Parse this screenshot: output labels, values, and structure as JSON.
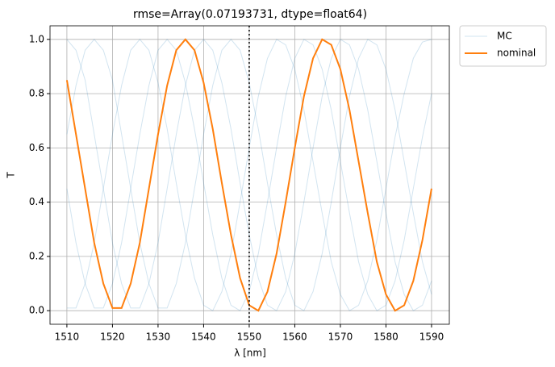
{
  "chart_data": {
    "type": "line",
    "title": "rmse=Array(0.07193731, dtype=float64)",
    "xlabel": "λ [nm]",
    "ylabel": "T",
    "x": [
      1510,
      1512,
      1514,
      1516,
      1518,
      1520,
      1522,
      1524,
      1526,
      1528,
      1530,
      1532,
      1534,
      1536,
      1538,
      1540,
      1542,
      1544,
      1546,
      1548,
      1550,
      1552,
      1554,
      1556,
      1558,
      1560,
      1562,
      1564,
      1566,
      1568,
      1570,
      1572,
      1574,
      1576,
      1578,
      1580,
      1582,
      1584,
      1586,
      1588,
      1590
    ],
    "series": [
      {
        "name": "MC",
        "color": "#1f77b4",
        "runs": [
          [
            0.45,
            0.25,
            0.1,
            0.01,
            0.01,
            0.1,
            0.25,
            0.45,
            0.65,
            0.83,
            0.96,
            1.0,
            0.96,
            0.84,
            0.67,
            0.47,
            0.28,
            0.12,
            0.02,
            0.0,
            0.07,
            0.21,
            0.4,
            0.6,
            0.79,
            0.93,
            1.0,
            0.98,
            0.89,
            0.74,
            0.55,
            0.36,
            0.18,
            0.06,
            0.0,
            0.02,
            0.11,
            0.26,
            0.45,
            0.64,
            0.8
          ],
          [
            1.0,
            0.96,
            0.85,
            0.65,
            0.45,
            0.25,
            0.1,
            0.01,
            0.01,
            0.1,
            0.25,
            0.45,
            0.65,
            0.83,
            0.96,
            1.0,
            0.96,
            0.84,
            0.67,
            0.47,
            0.28,
            0.12,
            0.02,
            0.0,
            0.07,
            0.21,
            0.4,
            0.6,
            0.79,
            0.93,
            1.0,
            0.98,
            0.89,
            0.74,
            0.55,
            0.36,
            0.18,
            0.06,
            0.0,
            0.02,
            0.11
          ],
          [
            0.01,
            0.01,
            0.1,
            0.25,
            0.45,
            0.65,
            0.83,
            0.96,
            1.0,
            0.96,
            0.84,
            0.67,
            0.47,
            0.28,
            0.12,
            0.02,
            0.0,
            0.07,
            0.21,
            0.4,
            0.6,
            0.79,
            0.93,
            1.0,
            0.98,
            0.89,
            0.74,
            0.55,
            0.36,
            0.18,
            0.06,
            0.0,
            0.02,
            0.11,
            0.26,
            0.45,
            0.64,
            0.8,
            0.93,
            0.99,
            1.0
          ],
          [
            0.65,
            0.83,
            0.96,
            1.0,
            0.96,
            0.85,
            0.65,
            0.45,
            0.25,
            0.1,
            0.01,
            0.01,
            0.1,
            0.25,
            0.45,
            0.65,
            0.83,
            0.96,
            1.0,
            0.96,
            0.84,
            0.67,
            0.47,
            0.28,
            0.12,
            0.02,
            0.0,
            0.07,
            0.21,
            0.4,
            0.6,
            0.79,
            0.93,
            1.0,
            0.98,
            0.89,
            0.74,
            0.55,
            0.36,
            0.18,
            0.06
          ]
        ]
      },
      {
        "name": "nominal",
        "color": "#ff7f0e",
        "values": [
          0.85,
          0.65,
          0.45,
          0.25,
          0.1,
          0.01,
          0.01,
          0.1,
          0.25,
          0.45,
          0.65,
          0.83,
          0.96,
          1.0,
          0.96,
          0.84,
          0.67,
          0.47,
          0.28,
          0.12,
          0.02,
          0.0,
          0.07,
          0.21,
          0.4,
          0.6,
          0.79,
          0.93,
          1.0,
          0.98,
          0.89,
          0.74,
          0.55,
          0.36,
          0.18,
          0.06,
          0.0,
          0.02,
          0.11,
          0.26,
          0.45
        ]
      }
    ],
    "vline": 1550,
    "xlim": [
      1506.3,
      1593.9
    ],
    "ylim": [
      -0.05,
      1.05
    ],
    "xticks": [
      1510,
      1520,
      1530,
      1540,
      1550,
      1560,
      1570,
      1580,
      1590
    ],
    "yticks": [
      {
        "value": 0,
        "label": "0.0"
      },
      {
        "value": 0.2,
        "label": "0.2"
      },
      {
        "value": 0.4,
        "label": "0.4"
      },
      {
        "value": 0.6,
        "label": "0.6"
      },
      {
        "value": 0.8,
        "label": "0.8"
      },
      {
        "value": 1,
        "label": "1.0"
      }
    ],
    "grid": true,
    "legend": "outside-upper-right"
  }
}
